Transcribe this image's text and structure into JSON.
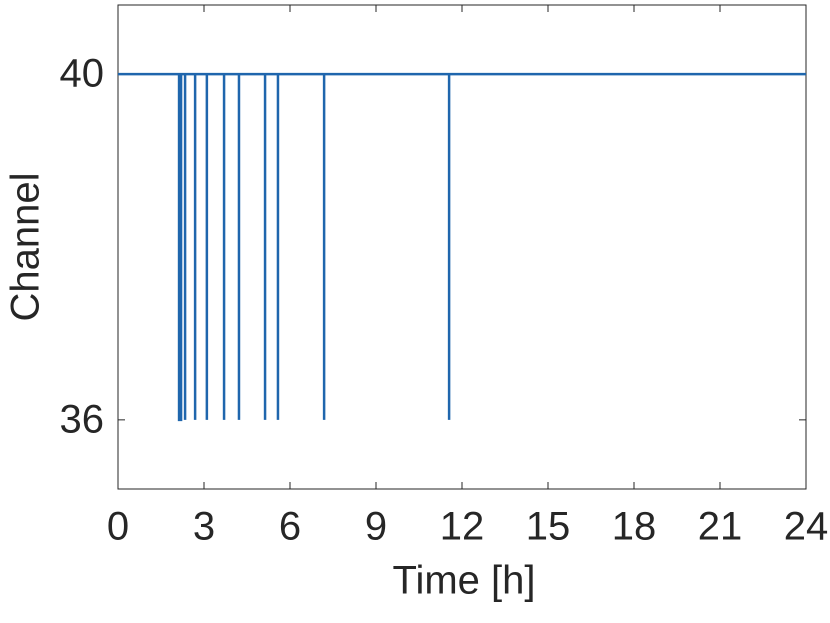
{
  "chart_data": {
    "type": "line",
    "x_label": "Time [h]",
    "y_label": "Channel",
    "x": [
      0,
      2.13,
      2.13,
      2.2,
      2.2,
      2.34,
      2.34,
      2.34,
      2.69,
      2.69,
      2.69,
      3.1,
      3.1,
      3.1,
      3.7,
      3.7,
      3.7,
      4.22,
      4.22,
      4.22,
      5.13,
      5.13,
      5.13,
      5.58,
      5.58,
      5.58,
      7.19,
      7.19,
      7.19,
      11.55,
      11.55,
      11.55,
      24
    ],
    "values": [
      40,
      40,
      36,
      36,
      40,
      40,
      36,
      40,
      40,
      36,
      40,
      40,
      36,
      40,
      40,
      36,
      40,
      40,
      36,
      40,
      40,
      36,
      40,
      40,
      36,
      40,
      40,
      36,
      40,
      40,
      36,
      40,
      40
    ],
    "color": "#1f66ad",
    "xlim": [
      0,
      24
    ],
    "xticks": [
      0,
      3,
      6,
      9,
      12,
      15,
      18,
      21,
      24
    ],
    "ylim": [
      35.2,
      40.8
    ],
    "yticks": [
      36,
      40
    ],
    "grid": false
  }
}
